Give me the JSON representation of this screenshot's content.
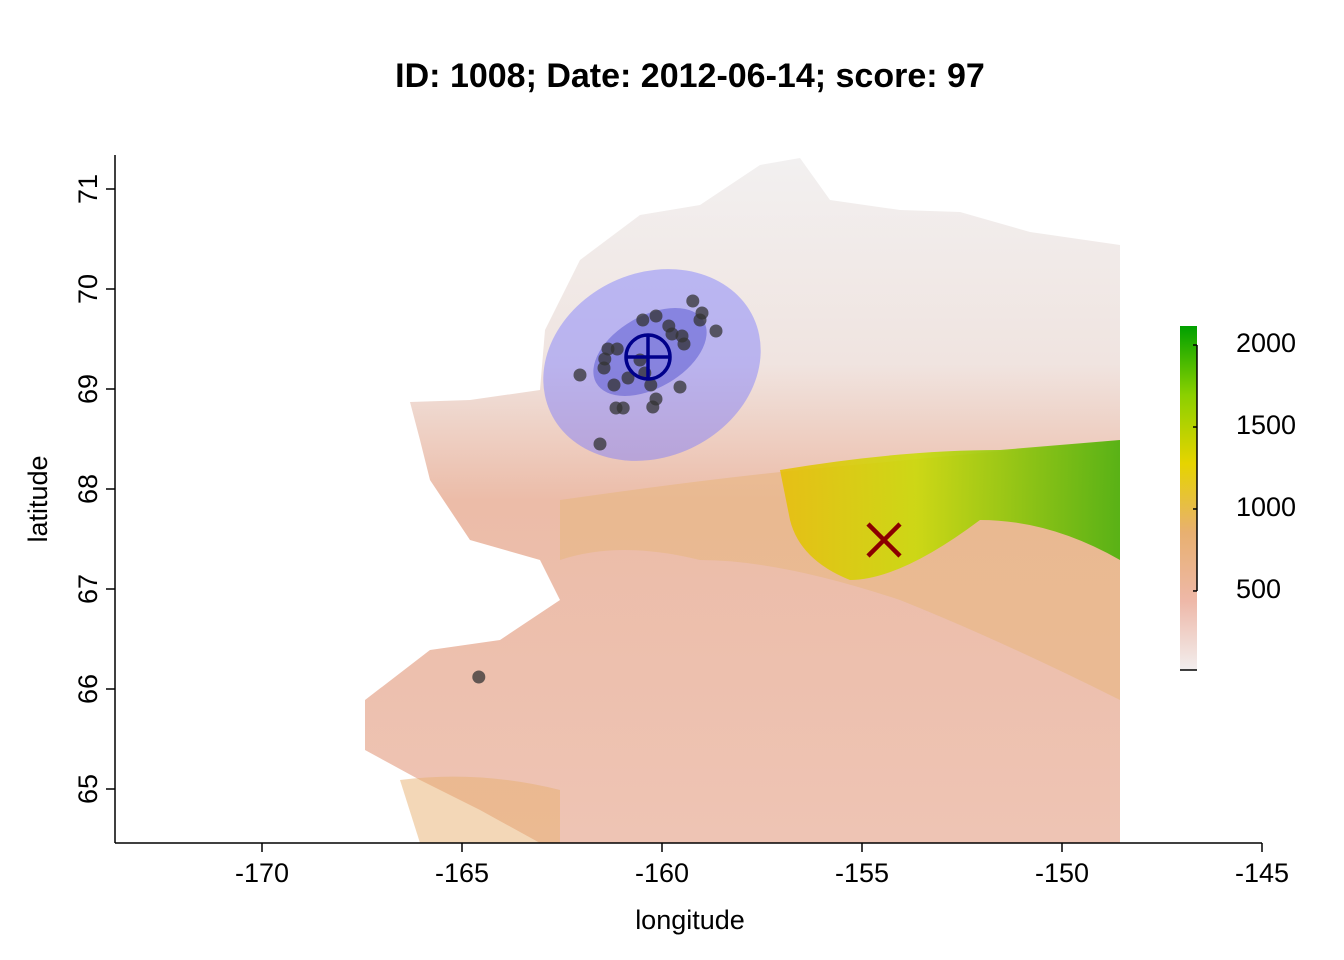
{
  "chart_data": {
    "type": "scatter",
    "title": "ID: 1008;  Date: 2012-06-14;  score: 97",
    "xlabel": "longitude",
    "ylabel": "latitude",
    "xlim": [
      -173.675,
      -145
    ],
    "ylim": [
      64.46,
      71.34
    ],
    "xticks": [
      -170,
      -165,
      -160,
      -155,
      -150,
      -145
    ],
    "yticks": [
      65,
      66,
      67,
      68,
      69,
      70,
      71
    ],
    "points": {
      "color": "#333333",
      "x": [
        -159.23,
        -159.0,
        -159.05,
        -158.65,
        -160.15,
        -160.48,
        -159.83,
        -159.75,
        -159.5,
        -159.45,
        -161.35,
        -161.12,
        -161.43,
        -161.45,
        -160.43,
        -160.85,
        -160.28,
        -162.05,
        -161.2,
        -159.55,
        -160.15,
        -161.15,
        -160.97,
        -160.23,
        -161.55,
        -164.58,
        -160.55
      ],
      "y": [
        69.88,
        69.76,
        69.69,
        69.58,
        69.73,
        69.69,
        69.63,
        69.55,
        69.53,
        69.45,
        69.4,
        69.4,
        69.3,
        69.21,
        69.16,
        69.11,
        69.04,
        69.14,
        69.04,
        69.02,
        68.9,
        68.81,
        68.81,
        68.82,
        68.45,
        66.12,
        69.29
      ]
    },
    "centroid": {
      "x": -160.35,
      "y": 69.32,
      "color": "#00008b"
    },
    "target": {
      "x": -154.45,
      "y": 67.49,
      "color": "#8b0000"
    },
    "colorbar": {
      "lim": [
        18,
        2116
      ],
      "ticks": [
        500,
        1000,
        1500,
        2000
      ],
      "colors": [
        "#f2eeee",
        "#eeb8a8",
        "#e8b070",
        "#e6d400",
        "#8bd000",
        "#00a000"
      ]
    }
  }
}
